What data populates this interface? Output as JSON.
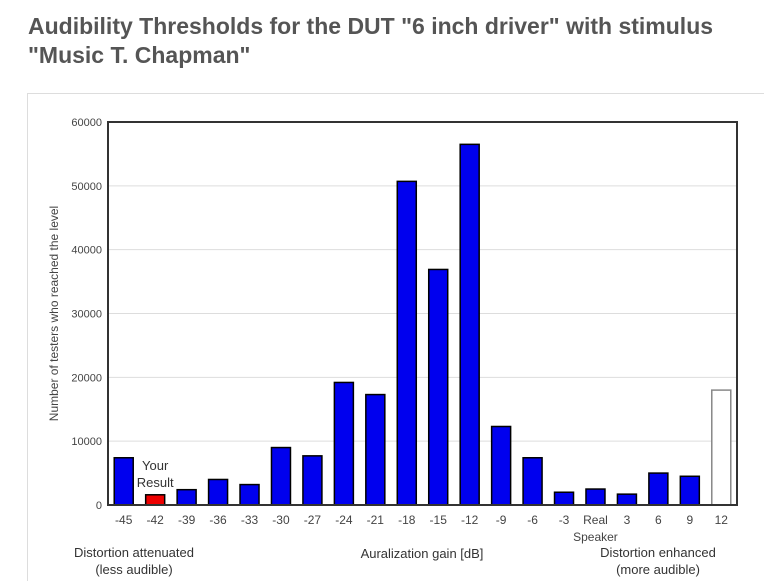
{
  "title_line1": "Audibility Thresholds for the DUT \"6 inch driver\" with stimulus",
  "title_line2": "\"Music T. Chapman\"",
  "notes": {
    "left_line1": "Distortion attenuated",
    "left_line2": "(less audible)",
    "center": "Auralization gain [dB]",
    "right_line1": "Distortion enhanced",
    "right_line2": "(more audible)"
  },
  "chart_data": {
    "type": "bar",
    "title": "",
    "xlabel": "Auralization gain [dB]",
    "ylabel": "Number of testers who reached the level",
    "ylim": [
      0,
      60000
    ],
    "yticks": [
      0,
      10000,
      20000,
      30000,
      40000,
      50000,
      60000
    ],
    "grid": true,
    "categories": [
      "-45",
      "-42",
      "-39",
      "-36",
      "-33",
      "-30",
      "-27",
      "-24",
      "-21",
      "-18",
      "-15",
      "-12",
      "-9",
      "-6",
      "-3",
      "Real Speaker",
      "3",
      "6",
      "9",
      "12"
    ],
    "category_lines": [
      [
        "-45"
      ],
      [
        "-42"
      ],
      [
        "-39"
      ],
      [
        "-36"
      ],
      [
        "-33"
      ],
      [
        "-30"
      ],
      [
        "-27"
      ],
      [
        "-24"
      ],
      [
        "-21"
      ],
      [
        "-18"
      ],
      [
        "-15"
      ],
      [
        "-12"
      ],
      [
        "-9"
      ],
      [
        "-6"
      ],
      [
        "-3"
      ],
      [
        "Real",
        "Speaker"
      ],
      [
        "3"
      ],
      [
        "6"
      ],
      [
        "9"
      ],
      [
        "12"
      ]
    ],
    "values": [
      7400,
      1600,
      2400,
      4000,
      3200,
      9000,
      7700,
      19200,
      17300,
      50700,
      36900,
      56500,
      12300,
      7400,
      2000,
      2500,
      1700,
      5000,
      4500,
      18000
    ],
    "bar_styles": [
      "normal",
      "result",
      "normal",
      "normal",
      "normal",
      "normal",
      "normal",
      "normal",
      "normal",
      "normal",
      "normal",
      "normal",
      "normal",
      "normal",
      "normal",
      "normal",
      "normal",
      "normal",
      "normal",
      "outline"
    ],
    "colors": {
      "bar": "#0000ee",
      "result": "#ee0000",
      "outline_fill": "#ffffff",
      "outline_stroke": "#888888"
    },
    "annotation": {
      "category": "-42",
      "lines": [
        "Your",
        "Result"
      ]
    }
  }
}
